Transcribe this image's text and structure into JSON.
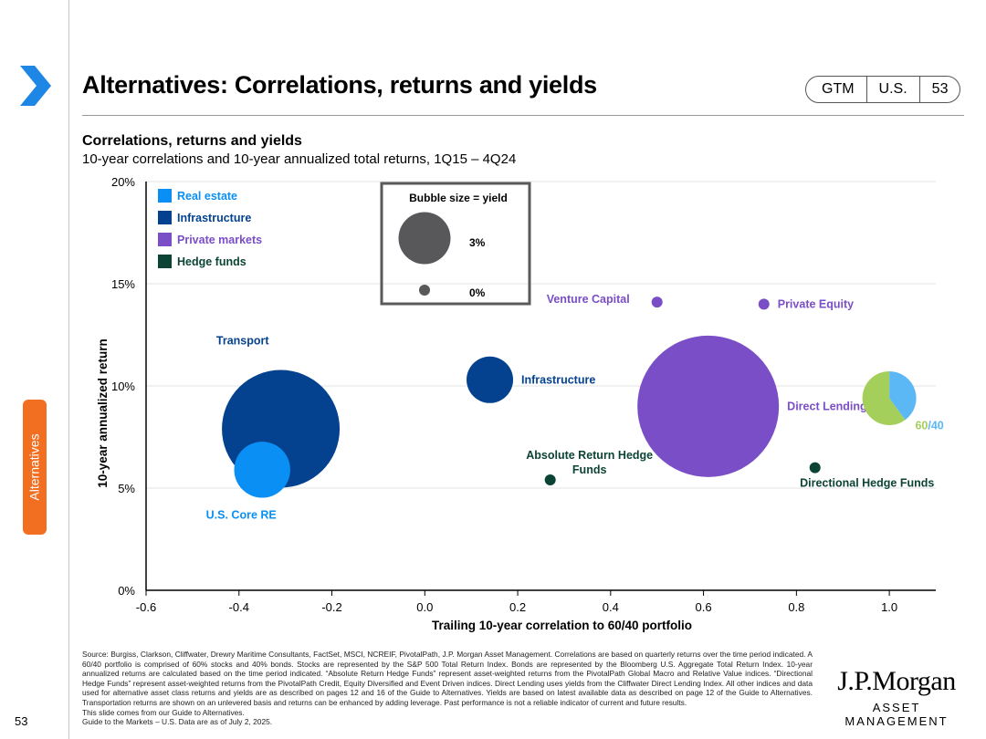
{
  "header": {
    "title": "Alternatives: Correlations, returns and yields",
    "badge": [
      "GTM",
      "U.S.",
      "53"
    ]
  },
  "side_tab": "Alternatives",
  "page_number": "53",
  "colors": {
    "real_estate": "#0a8ff5",
    "infrastructure": "#04428f",
    "private_markets": "#7a4ec6",
    "hedge_funds": "#0b4434",
    "gray": "#58585a",
    "sixty": "#a4cf5a",
    "forty": "#5cb8f5",
    "accent": "#f26f21",
    "chevron": "#1e86e5"
  },
  "chart_data": {
    "type": "scatter",
    "title": "Correlations, returns and yields",
    "subtitle": "10-year correlations and 10-year annualized total returns, 1Q15 – 4Q24",
    "xlabel": "Trailing 10-year correlation to 60/40 portfolio",
    "ylabel": "10-year annualized return",
    "xlim": [
      -0.6,
      1.1
    ],
    "ylim": [
      0,
      20
    ],
    "xticks": [
      -0.6,
      -0.4,
      -0.2,
      0.0,
      0.2,
      0.4,
      0.6,
      0.8,
      1.0
    ],
    "xtick_labels": [
      "-0.6",
      "-0.4",
      "-0.2",
      "0.0",
      "0.2",
      "0.4",
      "0.6",
      "0.8",
      "1.0"
    ],
    "yticks": [
      0,
      5,
      10,
      15,
      20
    ],
    "ytick_labels": [
      "0%",
      "5%",
      "10%",
      "15%",
      "20%"
    ],
    "gridlines": "horizontal",
    "legend": {
      "placement": "top-left",
      "entries": [
        {
          "label": "Real estate",
          "color": "#0a8ff5"
        },
        {
          "label": "Infrastructure",
          "color": "#04428f"
        },
        {
          "label": "Private markets",
          "color": "#7a4ec6"
        },
        {
          "label": "Hedge funds",
          "color": "#0b4434"
        }
      ]
    },
    "bubble_legend": {
      "title": "Bubble size = yield",
      "items": [
        {
          "label": "3%",
          "yield": 3.0
        },
        {
          "label": "0%",
          "yield": 0.0
        }
      ]
    },
    "points": [
      {
        "name": "Transport",
        "x": -0.31,
        "y": 7.9,
        "yield": 9.0,
        "category": "Infrastructure",
        "label_pos": "top-left"
      },
      {
        "name": "U.S. Core RE",
        "x": -0.35,
        "y": 5.9,
        "yield": 3.8,
        "category": "Real estate",
        "label_pos": "bottom-left"
      },
      {
        "name": "Infrastructure",
        "x": 0.14,
        "y": 10.3,
        "yield": 3.0,
        "category": "Infrastructure",
        "label_pos": "right"
      },
      {
        "name": "Venture Capital",
        "x": 0.5,
        "y": 14.1,
        "yield": 0.0,
        "category": "Private markets",
        "label_pos": "left"
      },
      {
        "name": "Private Equity",
        "x": 0.73,
        "y": 14.0,
        "yield": 0.0,
        "category": "Private markets",
        "label_pos": "right"
      },
      {
        "name": "Direct Lending",
        "x": 0.61,
        "y": 9.0,
        "yield": 11.0,
        "category": "Private markets",
        "label_pos": "right"
      },
      {
        "name": "Absolute Return Hedge Funds",
        "x": 0.27,
        "y": 5.4,
        "yield": 0.0,
        "category": "Hedge funds",
        "label_pos": "top"
      },
      {
        "name": "Directional Hedge Funds",
        "x": 0.84,
        "y": 6.0,
        "yield": 0.0,
        "category": "Hedge funds",
        "label_pos": "bottom"
      }
    ],
    "portfolio_60_40": {
      "x": 1.0,
      "y": 9.4,
      "yield": 3.0,
      "label_sixty": "60",
      "label_slash": "/",
      "label_forty": "40",
      "stocks_share": 0.6,
      "bonds_share": 0.4
    }
  },
  "footer": {
    "source_lines": [
      "Source: Burgiss, Clarkson, Cliffwater, Drewry Maritime Consultants, FactSet, MSCI, NCREIF, PivotalPath, J.P. Morgan Asset Management. Correlations are based on quarterly returns over the time period indicated. A 60/40 portfolio is comprised of 60% stocks and 40% bonds. Stocks are represented by the S&P 500 Total Return Index. Bonds are represented by the Bloomberg U.S. Aggregate Total Return Index. 10-year annualized returns are calculated based on the time period indicated. “Absolute Return Hedge Funds” represent asset-weighted returns from the PivotalPath Global Macro and Relative Value indices. “Directional Hedge Funds” represent asset-weighted returns from the PivotalPath Credit, Equity Diversified and Event Driven indices. Direct Lending uses yields from the Cliffwater Direct Lending Index. All other indices and data used for alternative asset class returns and yields are as described on pages 12 and 16 of the Guide to Alternatives. Yields are based on latest available data as described on page 12 of the Guide to Alternatives. Transportation returns are shown on an unlevered basis and returns can be enhanced by adding leverage. Past performance is not a reliable indicator of current and future results.",
      "This slide comes from our Guide to Alternatives.",
      "Guide to the Markets – U.S. Data are as of July 2, 2025."
    ],
    "logo_line1": "J.P.Morgan",
    "logo_line2": "ASSET MANAGEMENT"
  }
}
